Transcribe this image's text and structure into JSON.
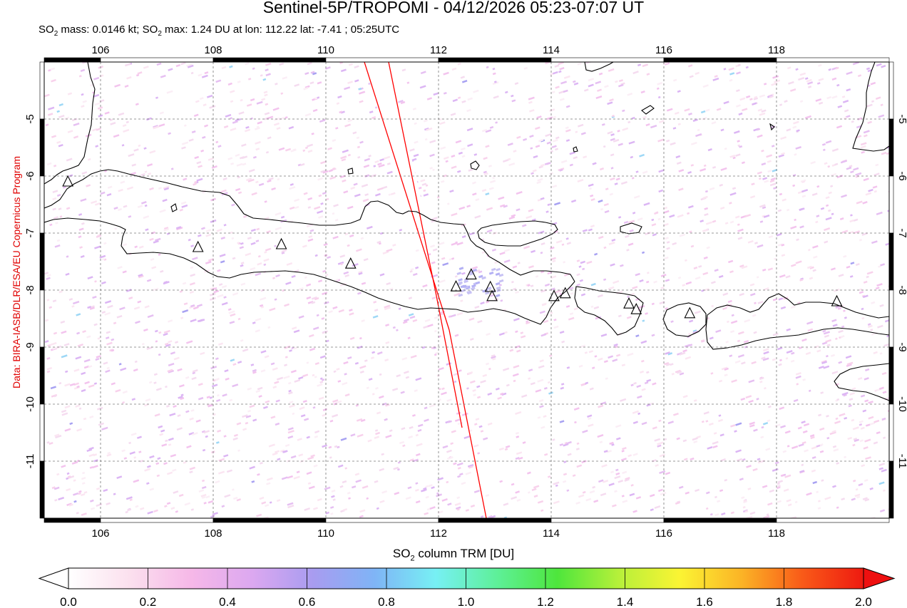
{
  "title": "Sentinel-5P/TROPOMI - 04/12/2026 05:23-07:07 UT",
  "subtitle": {
    "so2": "SO",
    "sub2": "2",
    "mass_text": " mass: 0.0146 kt; SO",
    "max_text": " max: 1.24 DU at lon: 112.22 lat: -7.41 ; 05:25UTC"
  },
  "credit": "Data: BIRA-IASB/DLR/ESA/EU Copernicus Program",
  "map": {
    "lon_range": [
      105.0,
      120.0
    ],
    "lat_range": [
      -12.0,
      -4.0
    ],
    "lon_ticks": [
      "106",
      "108",
      "110",
      "112",
      "114",
      "116",
      "118"
    ],
    "lat_ticks": [
      "-5",
      "-6",
      "-7",
      "-8",
      "-9",
      "-10",
      "-11"
    ],
    "grid": "dashed",
    "volcanoes": [
      {
        "lon": 105.42,
        "lat": -6.1
      },
      {
        "lon": 107.73,
        "lat": -7.25
      },
      {
        "lon": 109.21,
        "lat": -7.2
      },
      {
        "lon": 110.44,
        "lat": -7.54
      },
      {
        "lon": 112.31,
        "lat": -7.94
      },
      {
        "lon": 112.58,
        "lat": -7.73
      },
      {
        "lon": 112.92,
        "lat": -7.95
      },
      {
        "lon": 112.95,
        "lat": -8.11
      },
      {
        "lon": 114.05,
        "lat": -8.11
      },
      {
        "lon": 114.25,
        "lat": -8.06
      },
      {
        "lon": 115.38,
        "lat": -8.24
      },
      {
        "lon": 115.51,
        "lat": -8.34
      },
      {
        "lon": 116.46,
        "lat": -8.41
      },
      {
        "lon": 119.07,
        "lat": -8.2
      }
    ]
  },
  "colorbar": {
    "title_prefix": "SO",
    "title_sub": "2",
    "title_suffix": " column TRM [DU]",
    "min": 0.0,
    "max": 2.0,
    "ticks": [
      "0.0",
      "0.2",
      "0.4",
      "0.6",
      "0.8",
      "1.0",
      "1.2",
      "1.4",
      "1.6",
      "1.8",
      "2.0"
    ],
    "colors": [
      "#ffffff",
      "#fbe0ee",
      "#f6b8e8",
      "#dca8f0",
      "#a89cf0",
      "#7fb4f6",
      "#77f0f4",
      "#5ef09a",
      "#4ee63c",
      "#b6f03a",
      "#fbf433",
      "#fbb426",
      "#f95a18",
      "#ee1a10"
    ]
  }
}
